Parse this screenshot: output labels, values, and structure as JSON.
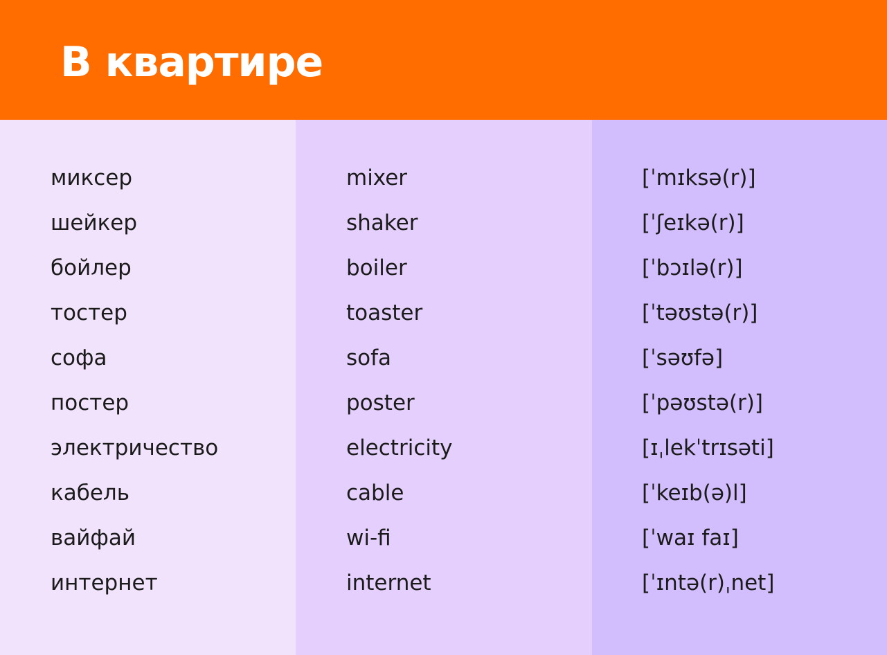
{
  "title": "В квартире",
  "colors": {
    "header": "#ff6d00",
    "column_russian": "#f1e3fb",
    "column_english": "#e5d0fd",
    "column_transcription": "#d3befd",
    "text": "#1b1b1b",
    "title_text": "#ffffff"
  },
  "words": [
    {
      "ru": "миксер",
      "en": "mixer",
      "ipa": "[ˈmɪksə(r)]"
    },
    {
      "ru": "шейкер",
      "en": "shaker",
      "ipa": "[ˈʃeɪkə(r)]"
    },
    {
      "ru": "бойлер",
      "en": "boiler",
      "ipa": "[ˈbɔɪlə(r)]"
    },
    {
      "ru": "тостер",
      "en": "toaster",
      "ipa": "[ˈtəʊstə(r)]"
    },
    {
      "ru": "софа",
      "en": "sofa",
      "ipa": "[ˈsəʊfə]"
    },
    {
      "ru": "постер",
      "en": "poster",
      "ipa": "[ˈpəʊstə(r)]"
    },
    {
      "ru": "электричество",
      "en": "electricity",
      "ipa": "[ɪˌlekˈtrɪsəti]"
    },
    {
      "ru": "кабель",
      "en": "cable",
      "ipa": "[ˈkeɪb(ə)l]"
    },
    {
      "ru": "вайфай",
      "en": "wi-fi",
      "ipa": "[ˈwaɪ faɪ]"
    },
    {
      "ru": "интернет",
      "en": "internet",
      "ipa": "[ˈɪntə(r)ˌnet]"
    }
  ]
}
